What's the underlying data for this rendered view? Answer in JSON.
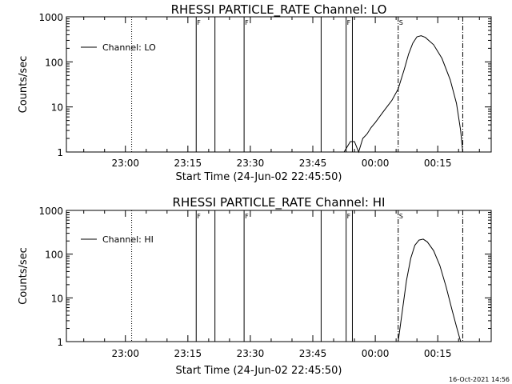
{
  "chart_data": [
    {
      "type": "line",
      "title": "RHESSI PARTICLE_RATE Channel: LO",
      "xlabel": "Start Time (24-Jun-02 22:45:50)",
      "ylabel": "Counts/sec",
      "y_scale": "log",
      "ylim": [
        1,
        1000
      ],
      "xlim": [
        "22:45:50",
        "00:27:50"
      ],
      "x_ticks": [
        "23:00",
        "23:15",
        "23:30",
        "23:45",
        "00:00",
        "00:15"
      ],
      "y_ticks": [
        "1",
        "10",
        "100",
        "1000"
      ],
      "grid": false,
      "legend_position": "top-left",
      "series": [
        {
          "name": "Channel: LO",
          "x": [
            "23:52:30",
            "23:54:00",
            "23:55:00",
            "23:56:00",
            "23:57:00",
            "23:58:00",
            "23:59:00",
            "00:00:00",
            "00:02:00",
            "00:04:00",
            "00:05:30",
            "00:07:00",
            "00:08:00",
            "00:09:00",
            "00:10:00",
            "00:11:00",
            "00:12:00",
            "00:14:00",
            "00:16:00",
            "00:18:00",
            "00:19:30",
            "00:20:30",
            "00:21:00"
          ],
          "values": [
            1,
            1.7,
            1.7,
            1,
            2,
            2.5,
            3.5,
            4.5,
            8,
            14,
            25,
            70,
            150,
            260,
            360,
            380,
            350,
            240,
            120,
            40,
            12,
            3,
            1
          ]
        }
      ],
      "vertical_lines": {
        "solid": [
          "23:17:00",
          "23:21:30",
          "23:28:30",
          "23:47:00",
          "23:53:00",
          "23:54:30"
        ],
        "dotted": [
          "23:01:30"
        ],
        "dash_dot": [
          "00:05:30",
          "00:21:00"
        ]
      },
      "flags": [
        {
          "time": "23:17:00",
          "text": "F"
        },
        {
          "time": "23:28:30",
          "text": "F"
        },
        {
          "time": "23:53:00",
          "text": "F"
        },
        {
          "time": "00:05:30",
          "text": "S"
        }
      ],
      "colors": {
        "series": "#000000"
      }
    },
    {
      "type": "line",
      "title": "RHESSI PARTICLE_RATE Channel: HI",
      "xlabel": "Start Time (24-Jun-02 22:45:50)",
      "ylabel": "Counts/sec",
      "y_scale": "log",
      "ylim": [
        1,
        1000
      ],
      "xlim": [
        "22:45:50",
        "00:27:50"
      ],
      "x_ticks": [
        "23:00",
        "23:15",
        "23:30",
        "23:45",
        "00:00",
        "00:15"
      ],
      "y_ticks": [
        "1",
        "10",
        "100",
        "1000"
      ],
      "grid": false,
      "legend_position": "top-left",
      "series": [
        {
          "name": "Channel: HI",
          "x": [
            "00:05:30",
            "00:06:30",
            "00:07:30",
            "00:08:30",
            "00:09:30",
            "00:10:30",
            "00:11:30",
            "00:12:30",
            "00:14:00",
            "00:15:30",
            "00:17:00",
            "00:18:30",
            "00:19:30",
            "00:20:30"
          ],
          "values": [
            1,
            5,
            25,
            80,
            160,
            210,
            220,
            190,
            120,
            55,
            18,
            5,
            2.2,
            1
          ]
        }
      ],
      "vertical_lines": {
        "solid": [
          "23:17:00",
          "23:21:30",
          "23:28:30",
          "23:47:00",
          "23:53:00",
          "23:54:30"
        ],
        "dotted": [
          "23:01:30"
        ],
        "dash_dot": [
          "00:05:30",
          "00:21:00"
        ]
      },
      "flags": [
        {
          "time": "23:17:00",
          "text": "F"
        },
        {
          "time": "23:28:30",
          "text": "F"
        },
        {
          "time": "23:53:00",
          "text": "F"
        },
        {
          "time": "00:05:30",
          "text": "S"
        }
      ],
      "colors": {
        "series": "#000000"
      }
    }
  ],
  "footer": {
    "timestamp": "16-Oct-2021 14:56"
  }
}
